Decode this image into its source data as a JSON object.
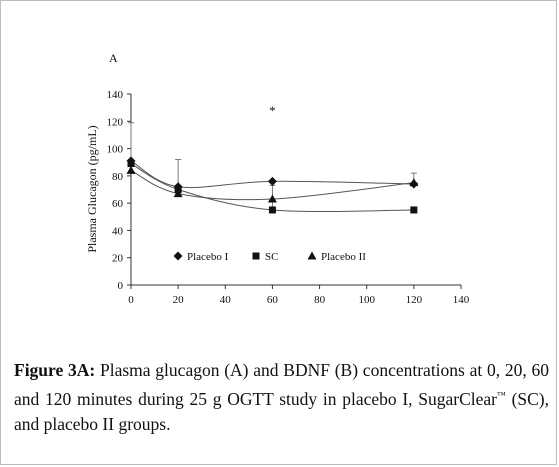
{
  "chart_data": {
    "type": "line",
    "panel_label": "A",
    "ylabel": "Plasma Glucagon (pg/mL)",
    "xlabel": "",
    "xlim": [
      0,
      140
    ],
    "ylim": [
      0,
      140
    ],
    "x_ticks": [
      0,
      20,
      40,
      60,
      80,
      100,
      120,
      140
    ],
    "y_ticks": [
      0,
      20,
      40,
      60,
      80,
      100,
      120,
      140
    ],
    "x": [
      0,
      20,
      60,
      120
    ],
    "series": [
      {
        "name": "Placebo I",
        "marker": "diamond",
        "values": [
          91,
          72,
          76,
          74
        ],
        "error_plus": [
          0,
          20,
          0,
          0
        ]
      },
      {
        "name": "SC",
        "marker": "square",
        "values": [
          89,
          70,
          55,
          55
        ],
        "error_plus": [
          30,
          0,
          18,
          0
        ]
      },
      {
        "name": "Placebo II",
        "marker": "triangle",
        "values": [
          84,
          67,
          63,
          75
        ],
        "error_plus": [
          0,
          0,
          0,
          7
        ]
      }
    ],
    "annotations": [
      {
        "text": "*",
        "x": 60
      }
    ],
    "legend_position": "bottom-inside",
    "grid": false
  },
  "caption": {
    "label": "Figure 3A:",
    "text_before_tm": "Plasma glucagon (A) and BDNF (B) concentrations at 0, 20, 60 and 120 minutes during 25 g OGTT study in placebo I, SugarClear",
    "tm": "™",
    "text_after_tm": " (SC), and placebo II groups."
  }
}
